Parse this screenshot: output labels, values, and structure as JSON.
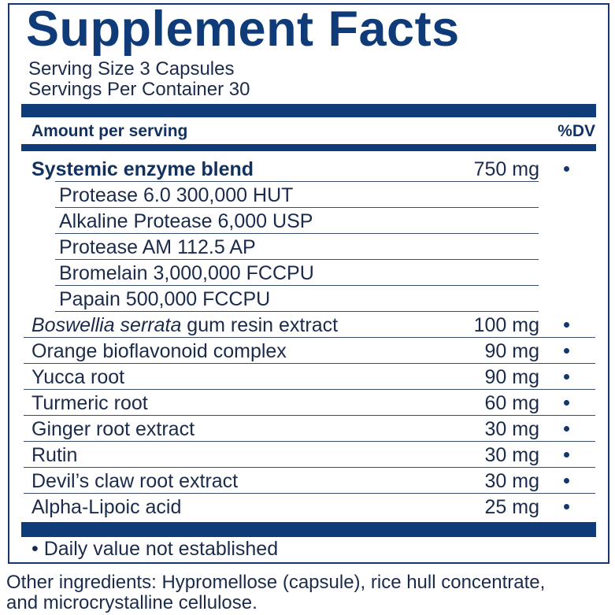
{
  "title": "Supplement Facts",
  "serving_size": "Serving Size 3 Capsules",
  "servings_per_container": "Servings Per Container 30",
  "header": {
    "amount": "Amount per serving",
    "dv": "%DV"
  },
  "rows": [
    {
      "name": "Systemic enzyme blend",
      "amount": "750 mg",
      "dv": "•",
      "type": "bold"
    },
    {
      "name": "Protease 6.0 300,000 HUT",
      "amount": "",
      "type": "sub"
    },
    {
      "name": "Alkaline Protease 6,000 USP",
      "amount": "",
      "type": "sub"
    },
    {
      "name": "Protease AM 112.5 AP",
      "amount": "",
      "type": "sub"
    },
    {
      "name": "Bromelain 3,000,000 FCCPU",
      "amount": "",
      "type": "sub"
    },
    {
      "name": "Papain 500,000 FCCPU",
      "amount": "",
      "type": "sub"
    },
    {
      "name_italic": "Boswellia serrata",
      "name": " gum resin extract",
      "amount": "100 mg",
      "dv": "•",
      "type": "main"
    },
    {
      "name": "Orange bioflavonoid complex",
      "amount": "90 mg",
      "dv": "•",
      "type": "main"
    },
    {
      "name": "Yucca root",
      "amount": "90 mg",
      "dv": "•",
      "type": "main"
    },
    {
      "name": "Turmeric root",
      "amount": "60 mg",
      "dv": "•",
      "type": "main"
    },
    {
      "name": "Ginger root extract",
      "amount": "30 mg",
      "dv": "•",
      "type": "main"
    },
    {
      "name": "Rutin",
      "amount": "30 mg",
      "dv": "•",
      "type": "main"
    },
    {
      "name": "Devil’s claw root extract",
      "amount": "30 mg",
      "dv": "•",
      "type": "main"
    },
    {
      "name": "Alpha-Lipoic acid",
      "amount": "25 mg",
      "dv": "•",
      "type": "main"
    }
  ],
  "footnote": "• Daily value not established",
  "other_ingredients": [
    "Other ingredients: Hypromellose (capsule), rice hull concentrate,",
    "and microcrystalline cellulose."
  ],
  "colors": {
    "brand_blue": "#0f3b78",
    "text": "#1b2b4c"
  }
}
